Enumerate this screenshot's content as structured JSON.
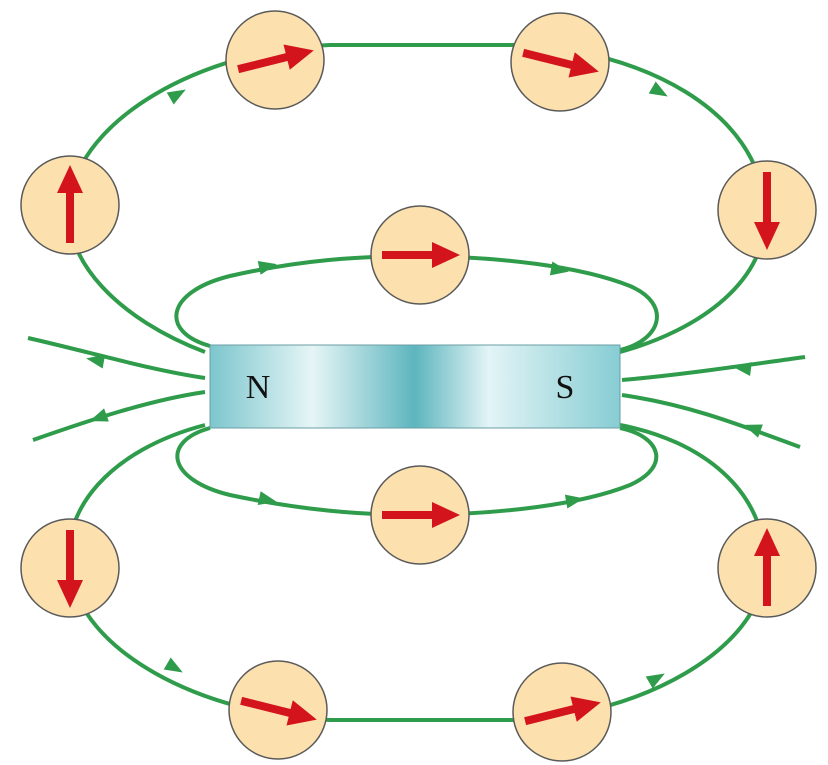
{
  "magnet": {
    "north_label": "N",
    "south_label": "S"
  }
}
